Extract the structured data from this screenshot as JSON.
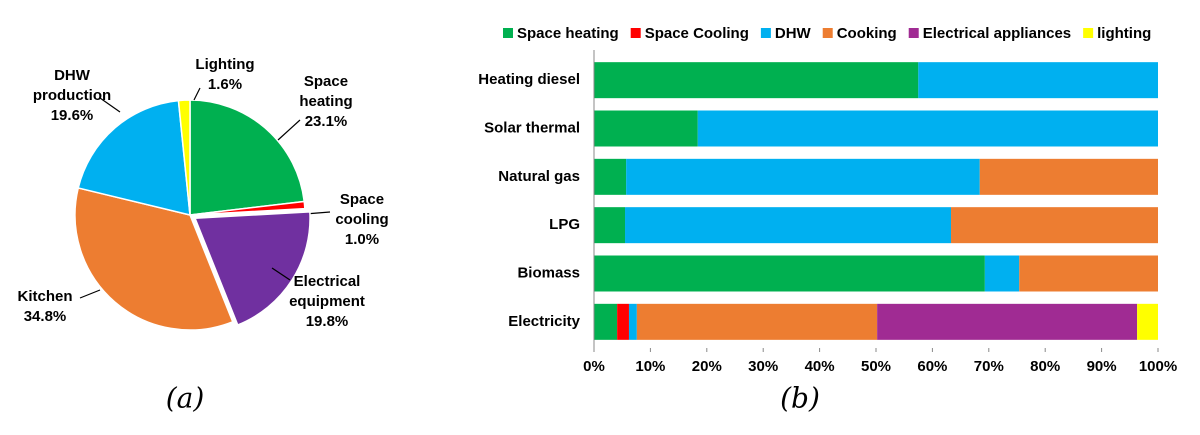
{
  "chart_data": [
    {
      "type": "pie",
      "caption": "(a)",
      "categories": [
        "Space heating",
        "Space cooling",
        "Electrical equipment",
        "Kitchen",
        "DHW production",
        "Lighting"
      ],
      "values": [
        23.1,
        1.0,
        19.8,
        34.8,
        19.6,
        1.6
      ],
      "value_labels": [
        "23.1%",
        "1.0%",
        "19.8%",
        "34.8%",
        "19.6%",
        "1.6%"
      ],
      "colors": [
        "#00b050",
        "#ff0000",
        "#7030a0",
        "#ed7d31",
        "#00b0f0",
        "#ffff00"
      ]
    },
    {
      "type": "stacked-bar-horizontal",
      "caption": "(b)",
      "categories": [
        "Heating diesel",
        "Solar thermal",
        "Natural gas",
        "LPG",
        "Biomass",
        "Electricity"
      ],
      "series": [
        {
          "name": "Space heating",
          "color": "#00b050",
          "values": [
            57.5,
            18.4,
            5.7,
            5.5,
            69.3,
            4.1
          ]
        },
        {
          "name": "Space Cooling",
          "color": "#ff0000",
          "values": [
            0,
            0,
            0,
            0,
            0,
            2.1
          ]
        },
        {
          "name": "DHW",
          "color": "#00b0f0",
          "values": [
            42.5,
            81.6,
            62.7,
            57.8,
            6.1,
            1.4
          ]
        },
        {
          "name": "Cooking",
          "color": "#ed7d31",
          "values": [
            0,
            0,
            31.6,
            36.7,
            24.6,
            42.6
          ]
        },
        {
          "name": "Electrical appliances",
          "color": "#a02b93",
          "values": [
            0,
            0,
            0,
            0,
            0,
            46.1
          ]
        },
        {
          "name": "lighting",
          "color": "#ffff00",
          "values": [
            0,
            0,
            0,
            0,
            0,
            3.7
          ]
        }
      ],
      "xlim": [
        0,
        100
      ],
      "xticks": [
        {
          "value": 0,
          "label": "0%"
        },
        {
          "value": 10,
          "label": "10%"
        },
        {
          "value": 20,
          "label": "20%"
        },
        {
          "value": 30,
          "label": "30%"
        },
        {
          "value": 40,
          "label": "40%"
        },
        {
          "value": 50,
          "label": "50%"
        },
        {
          "value": 60,
          "label": "60%"
        },
        {
          "value": 70,
          "label": "70%"
        },
        {
          "value": 80,
          "label": "80%"
        },
        {
          "value": 90,
          "label": "90%"
        },
        {
          "value": 100,
          "label": "100%"
        }
      ],
      "legend": "top"
    }
  ]
}
